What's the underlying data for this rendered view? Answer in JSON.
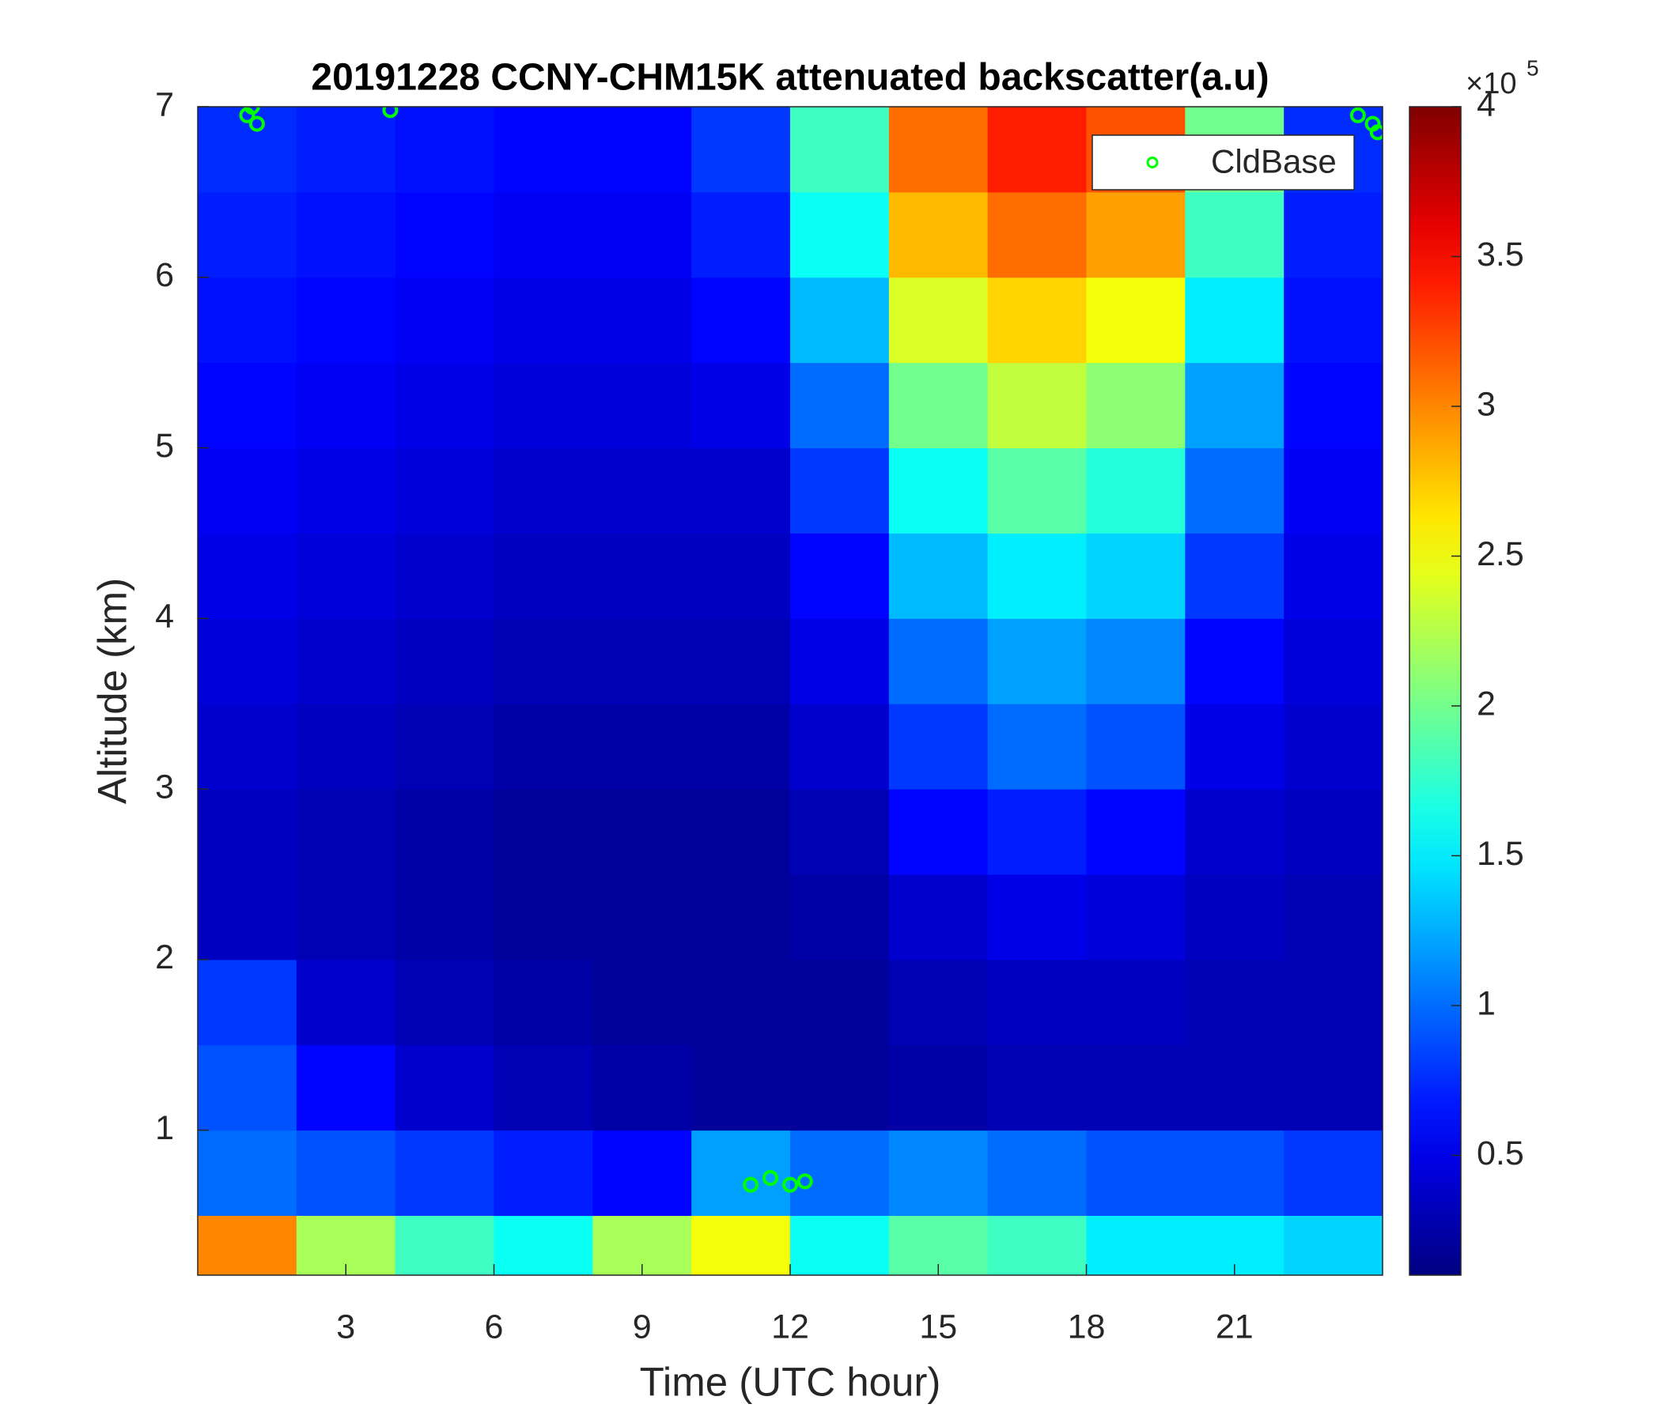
{
  "chart_data": {
    "type": "heatmap",
    "title": "20191228 CCNY-CHM15K attenuated backscatter(a.u)",
    "x_label": "Time (UTC hour)",
    "y_label": "Altitude (km)",
    "xlim": [
      0,
      24
    ],
    "ylim": [
      0.15,
      7
    ],
    "xticks": [
      3,
      6,
      9,
      12,
      15,
      18,
      21
    ],
    "yticks": [
      1,
      2,
      3,
      4,
      5,
      6,
      7
    ],
    "x_bins": [
      0,
      2,
      4,
      6,
      8,
      10,
      12,
      14,
      16,
      18,
      20,
      22,
      24
    ],
    "y_bins": [
      0,
      0.5,
      1,
      1.5,
      2,
      2.5,
      3,
      3.5,
      4,
      4.5,
      5,
      5.5,
      6,
      6.5,
      7
    ],
    "z": [
      [
        3.0,
        2.2,
        1.8,
        1.6,
        2.2,
        2.5,
        1.6,
        1.9,
        1.8,
        1.5,
        1.5,
        1.4
      ],
      [
        1.0,
        0.9,
        0.8,
        0.7,
        0.6,
        1.2,
        1.0,
        1.1,
        1.0,
        0.9,
        0.9,
        0.8
      ],
      [
        0.9,
        0.6,
        0.4,
        0.3,
        0.25,
        0.2,
        0.2,
        0.25,
        0.3,
        0.3,
        0.3,
        0.3
      ],
      [
        0.8,
        0.4,
        0.3,
        0.25,
        0.2,
        0.2,
        0.2,
        0.3,
        0.35,
        0.35,
        0.3,
        0.3
      ],
      [
        0.35,
        0.3,
        0.25,
        0.2,
        0.2,
        0.2,
        0.25,
        0.4,
        0.5,
        0.45,
        0.35,
        0.3
      ],
      [
        0.35,
        0.3,
        0.25,
        0.2,
        0.2,
        0.2,
        0.3,
        0.6,
        0.7,
        0.6,
        0.4,
        0.35
      ],
      [
        0.4,
        0.35,
        0.3,
        0.25,
        0.25,
        0.25,
        0.4,
        0.8,
        1.0,
        0.9,
        0.5,
        0.4
      ],
      [
        0.45,
        0.4,
        0.35,
        0.3,
        0.3,
        0.3,
        0.5,
        1.0,
        1.2,
        1.1,
        0.6,
        0.45
      ],
      [
        0.5,
        0.45,
        0.4,
        0.35,
        0.35,
        0.35,
        0.6,
        1.3,
        1.5,
        1.4,
        0.8,
        0.5
      ],
      [
        0.55,
        0.5,
        0.45,
        0.4,
        0.4,
        0.4,
        0.8,
        1.6,
        1.9,
        1.7,
        1.0,
        0.55
      ],
      [
        0.6,
        0.55,
        0.5,
        0.45,
        0.45,
        0.5,
        1.0,
        2.0,
        2.3,
        2.1,
        1.2,
        0.6
      ],
      [
        0.65,
        0.6,
        0.55,
        0.5,
        0.5,
        0.6,
        1.3,
        2.4,
        2.7,
        2.5,
        1.5,
        0.65
      ],
      [
        0.7,
        0.65,
        0.6,
        0.55,
        0.55,
        0.7,
        1.6,
        2.8,
        3.1,
        2.9,
        1.8,
        0.7
      ],
      [
        0.75,
        0.7,
        0.65,
        0.6,
        0.6,
        0.8,
        1.8,
        3.1,
        3.4,
        3.2,
        2.0,
        0.75
      ]
    ],
    "colormap": "jet",
    "clim": [
      0.1,
      4
    ],
    "colorbar_ticks": [
      0.5,
      1,
      1.5,
      2,
      2.5,
      3,
      3.5,
      4
    ],
    "colorbar_multiplier": "×10",
    "colorbar_exponent": "5",
    "series": [
      {
        "name": "CldBase",
        "type": "scatter",
        "color": "#00ff00",
        "x": [
          1.0,
          1.2,
          1.1,
          3.9,
          11.2,
          11.6,
          12.0,
          12.3,
          23.5,
          23.8,
          23.9
        ],
        "y": [
          6.95,
          6.9,
          7.0,
          6.98,
          0.68,
          0.72,
          0.68,
          0.7,
          6.95,
          6.9,
          6.85
        ]
      }
    ],
    "legend": "upper right"
  }
}
